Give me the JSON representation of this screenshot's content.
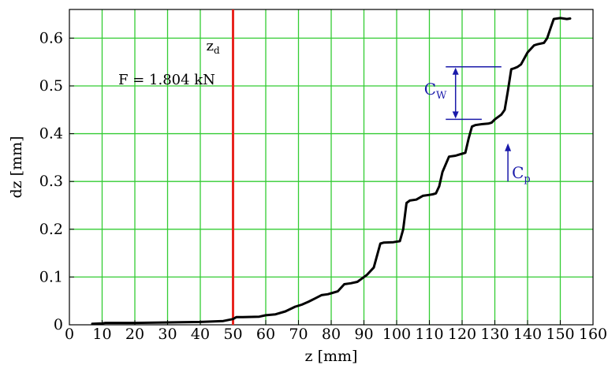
{
  "chart_data": {
    "type": "line",
    "xlabel": "z [mm]",
    "ylabel": "dz [mm]",
    "xlim": [
      0,
      160
    ],
    "ylim": [
      0,
      0.66
    ],
    "xticks": [
      0,
      10,
      20,
      30,
      40,
      50,
      60,
      70,
      80,
      90,
      100,
      110,
      120,
      130,
      140,
      150,
      160
    ],
    "yticks": [
      0,
      0.1,
      0.2,
      0.3,
      0.4,
      0.5,
      0.6
    ],
    "xtick_labels": [
      "0",
      "10",
      "20",
      "30",
      "40",
      "50",
      "60",
      "70",
      "80",
      "90",
      "100",
      "110",
      "120",
      "130",
      "140",
      "150",
      "160"
    ],
    "ytick_labels": [
      "0",
      "0.1",
      "0.2",
      "0.3",
      "0.4",
      "0.5",
      "0.6"
    ],
    "grid": true,
    "grid_color": "#33cc33",
    "line_color": "#000000",
    "series": [
      {
        "x": [
          7,
          10,
          11,
          20,
          30,
          40,
          47,
          50,
          51,
          53,
          58,
          60,
          63,
          66,
          69,
          71,
          73,
          75,
          77,
          79,
          80,
          82,
          84,
          86,
          88,
          90,
          91,
          93,
          95,
          96,
          99,
          101,
          102,
          103,
          104,
          106,
          108,
          110,
          111,
          112,
          113,
          114,
          116,
          118,
          119,
          120,
          121,
          122,
          123,
          124,
          126,
          128,
          129,
          130,
          132,
          133,
          134,
          135,
          136,
          137,
          138,
          140,
          142,
          143,
          145,
          146,
          147,
          148,
          150,
          152,
          153
        ],
        "y": [
          0.002,
          0.003,
          0.004,
          0.004,
          0.005,
          0.006,
          0.008,
          0.012,
          0.016,
          0.016,
          0.017,
          0.02,
          0.022,
          0.028,
          0.038,
          0.042,
          0.048,
          0.055,
          0.062,
          0.064,
          0.066,
          0.07,
          0.085,
          0.087,
          0.09,
          0.1,
          0.105,
          0.12,
          0.17,
          0.172,
          0.173,
          0.175,
          0.2,
          0.255,
          0.26,
          0.262,
          0.27,
          0.272,
          0.273,
          0.275,
          0.29,
          0.32,
          0.352,
          0.354,
          0.356,
          0.358,
          0.36,
          0.39,
          0.415,
          0.418,
          0.42,
          0.421,
          0.423,
          0.43,
          0.44,
          0.45,
          0.49,
          0.535,
          0.537,
          0.54,
          0.545,
          0.57,
          0.585,
          0.587,
          0.59,
          0.6,
          0.62,
          0.64,
          0.642,
          0.64,
          0.641
        ]
      }
    ],
    "vertical_marker": {
      "x": 50,
      "color": "#e8251f",
      "label": "z",
      "label_sub": "d"
    },
    "annotations": {
      "force": "F = 1.804 kN",
      "cw_label": "C",
      "cw_sub": "W",
      "cp_label": "C",
      "cp_sub": "p",
      "annotation_color": "#1a1aaa",
      "cw_top": 0.54,
      "cw_bottom": 0.43,
      "cw_x_start": 115,
      "cw_x_top_end": 132,
      "cw_x_bottom_end": 126,
      "cw_arrow_x": 118,
      "cp_x": 134,
      "cp_y_bottom": 0.3,
      "cp_y_top": 0.38
    }
  }
}
